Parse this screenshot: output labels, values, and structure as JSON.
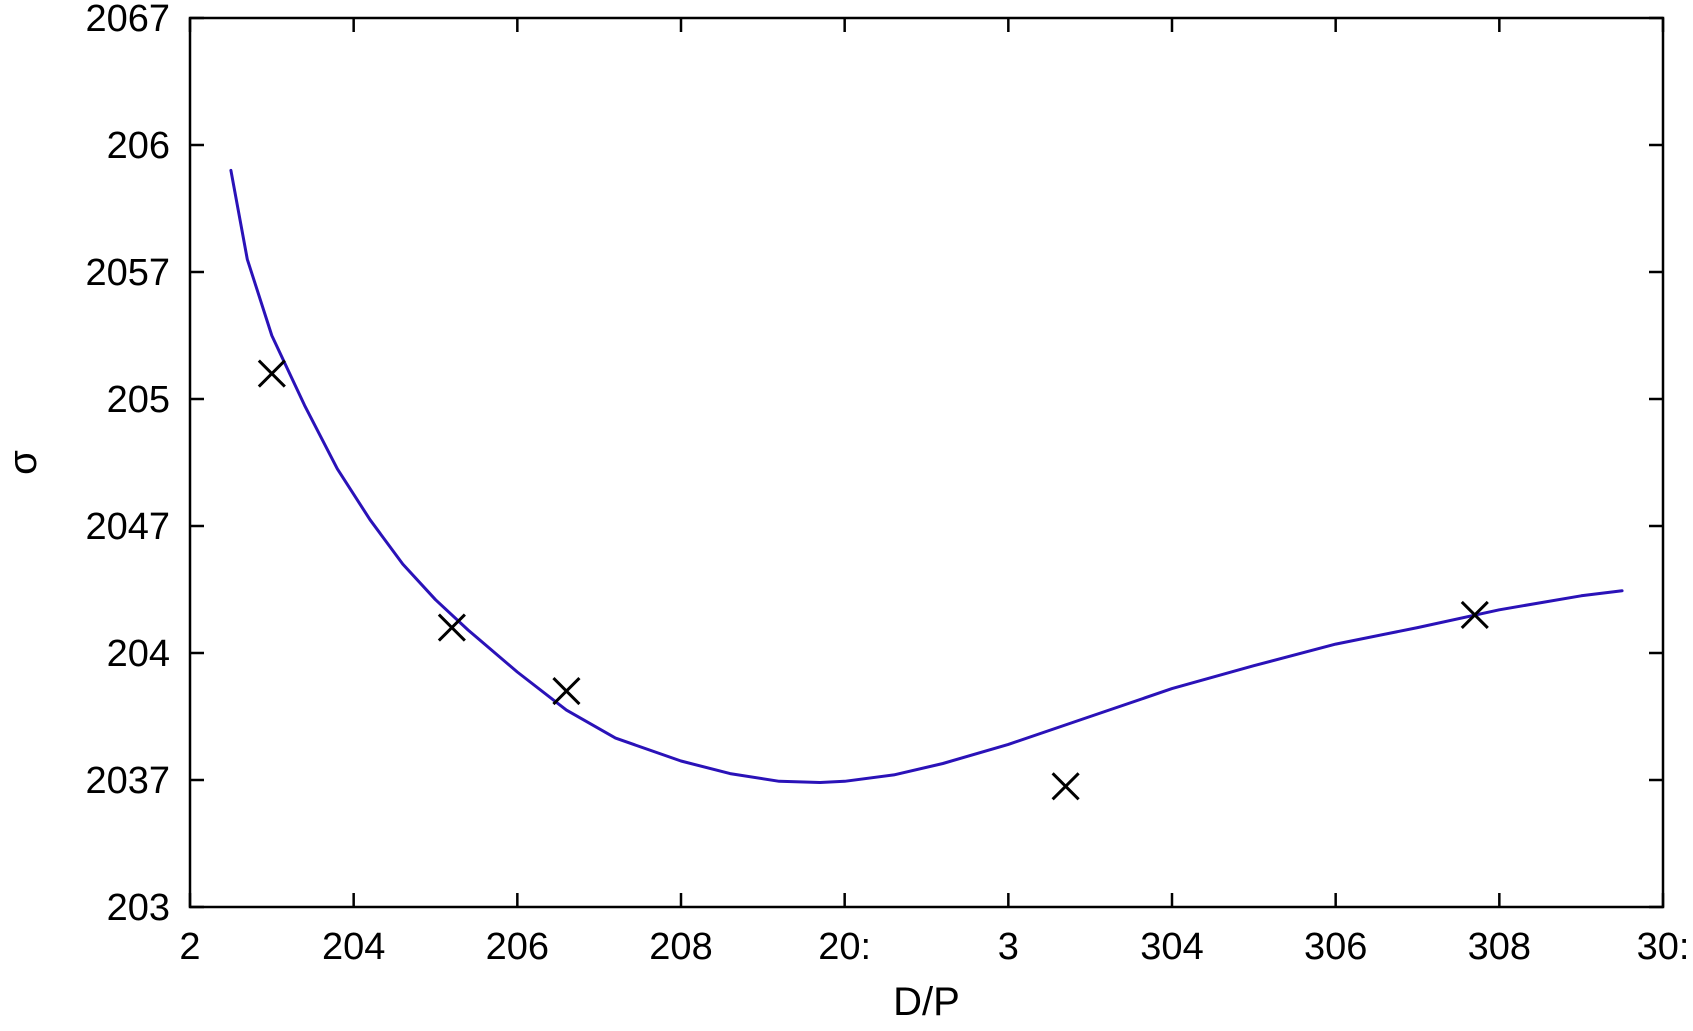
{
  "chart_data": {
    "type": "line",
    "title": "",
    "xlabel": "D/P",
    "ylabel": "σ",
    "grid": false,
    "xlim": [
      0,
      9
    ],
    "ylim": [
      0,
      7
    ],
    "x_ticks": [
      {
        "v": 0,
        "label": "2"
      },
      {
        "v": 1,
        "label": "204"
      },
      {
        "v": 2,
        "label": "206"
      },
      {
        "v": 3,
        "label": "208"
      },
      {
        "v": 4,
        "label": "20:"
      },
      {
        "v": 5,
        "label": "3"
      },
      {
        "v": 6,
        "label": "304"
      },
      {
        "v": 7,
        "label": "306"
      },
      {
        "v": 8,
        "label": "308"
      },
      {
        "v": 9,
        "label": "30:"
      }
    ],
    "y_ticks": [
      {
        "v": 0,
        "label": "203"
      },
      {
        "v": 1,
        "label": "2037"
      },
      {
        "v": 2,
        "label": "204"
      },
      {
        "v": 3,
        "label": "2047"
      },
      {
        "v": 4,
        "label": "205"
      },
      {
        "v": 5,
        "label": "2057"
      },
      {
        "v": 6,
        "label": "206"
      },
      {
        "v": 7,
        "label": "2067"
      }
    ],
    "series": [
      {
        "kind": "line",
        "color": "#2a12b8",
        "x": [
          0.25,
          0.35,
          0.5,
          0.7,
          0.9,
          1.1,
          1.3,
          1.5,
          1.7,
          2.0,
          2.3,
          2.6,
          3.0,
          3.3,
          3.6,
          3.85,
          4.0,
          4.3,
          4.6,
          5.0,
          5.5,
          6.0,
          6.5,
          7.0,
          7.5,
          8.0,
          8.5,
          8.75
        ],
        "y": [
          5.8,
          5.1,
          4.5,
          3.95,
          3.45,
          3.05,
          2.7,
          2.42,
          2.18,
          1.85,
          1.55,
          1.33,
          1.15,
          1.05,
          0.99,
          0.98,
          0.99,
          1.04,
          1.13,
          1.28,
          1.5,
          1.72,
          1.9,
          2.07,
          2.2,
          2.34,
          2.45,
          2.49
        ]
      },
      {
        "kind": "scatter",
        "marker": "x",
        "color": "#000000",
        "x": [
          0.5,
          1.6,
          2.3,
          5.35,
          7.85
        ],
        "y": [
          4.2,
          2.2,
          1.7,
          0.95,
          2.3
        ]
      }
    ]
  }
}
